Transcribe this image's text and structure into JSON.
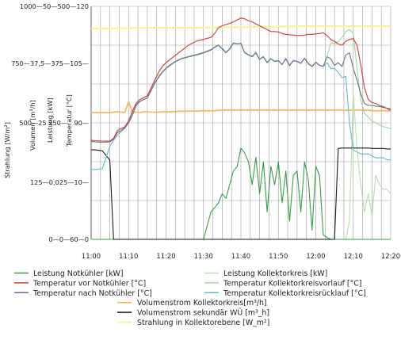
{
  "chart_data": {
    "type": "line",
    "x": [
      "11:00",
      "11:01",
      "11:03",
      "11:05",
      "11:06",
      "11:07",
      "11:08",
      "11:09",
      "11:10",
      "11:11",
      "11:12",
      "11:13",
      "11:14",
      "11:15",
      "11:16",
      "11:17",
      "11:18",
      "11:19",
      "11:20",
      "11:22",
      "11:24",
      "11:26",
      "11:28",
      "11:30",
      "11:32",
      "11:33",
      "11:34",
      "11:35",
      "11:36",
      "11:37",
      "11:38",
      "11:39",
      "11:40",
      "11:41",
      "11:42",
      "11:43",
      "11:44",
      "11:45",
      "11:46",
      "11:47",
      "11:48",
      "11:49",
      "11:50",
      "11:51",
      "11:52",
      "11:53",
      "11:54",
      "11:55",
      "11:56",
      "11:57",
      "11:58",
      "11:59",
      "12:00",
      "12:01",
      "12:02",
      "12:03",
      "12:04",
      "12:05",
      "12:06",
      "12:07",
      "12:08",
      "12:09",
      "12:10",
      "12:11",
      "12:12",
      "12:13",
      "12:14",
      "12:15",
      "12:16",
      "12:17",
      "12:18",
      "12:19",
      "12:20"
    ],
    "xticks": [
      "11:00",
      "11:10",
      "11:20",
      "11:30",
      "11:40",
      "11:50",
      "12:00",
      "12:10",
      "12:20"
    ],
    "axes": {
      "strahlung": {
        "label": "Strahlung [W/m²]",
        "ticks": [
          "0",
          "125",
          "500",
          "750",
          "1000"
        ]
      },
      "volumen": {
        "label": "Volumen [m³/h]",
        "ticks": [
          "0",
          "0,025",
          "25",
          "37,5",
          "50"
        ]
      },
      "leistung": {
        "label": "Leistung [kW]",
        "ticks": [
          "0",
          "250",
          "375",
          "500"
        ]
      },
      "temperatur": {
        "label": "Temperatur [°C]",
        "ticks": [
          "60",
          "10",
          "90",
          "105",
          "120"
        ]
      }
    },
    "ytick_labels": [
      "0—0—60—0",
      "125—0,025—10—",
      "500—25 250—",
      "90—",
      "750—37,5—375—105—",
      "1000—50—500—120"
    ],
    "series": [
      {
        "name": "Leistung Notkühler [kW]",
        "color": "#3a9a4a",
        "values": [
          0,
          0,
          0,
          0,
          0,
          0,
          0,
          0,
          0,
          0,
          0,
          0,
          0,
          0,
          0,
          0,
          0,
          0,
          0,
          0,
          0,
          0,
          0,
          0,
          0.3,
          0.35,
          0.4,
          0.5,
          0.45,
          0.6,
          0.75,
          0.8,
          1.0,
          0.95,
          0.85,
          0.6,
          0.9,
          0.5,
          0.85,
          0.3,
          0.8,
          0.6,
          0.85,
          0.4,
          0.75,
          0.2,
          0.7,
          0.75,
          0.3,
          0.85,
          0.65,
          0.1,
          0.8,
          0.7,
          0.05,
          0.02,
          0.0,
          0.0,
          0.0,
          0.0,
          0.0,
          0.0,
          0.0,
          0.0,
          0.0,
          0.0,
          0.0,
          0.0,
          0.0,
          0.0,
          0.0,
          0.0,
          0.0
        ]
      },
      {
        "name": "Leistung Kollektorkreis [kW]",
        "color": "#b9dfae",
        "values": [
          0,
          0,
          0,
          0,
          0,
          0,
          0,
          0,
          0,
          0,
          0,
          0,
          0,
          0,
          0,
          0,
          0,
          0,
          0,
          0,
          0,
          0,
          0,
          0,
          0,
          0,
          0,
          0,
          0,
          0,
          0,
          0,
          0,
          0,
          0,
          0,
          0,
          0,
          0,
          0,
          0,
          0,
          0,
          0,
          0,
          0,
          0,
          0,
          0,
          0,
          0,
          0,
          0,
          0,
          0,
          0,
          0,
          0,
          0,
          0,
          0,
          0.2,
          1.6,
          1.0,
          0.6,
          0.3,
          0.5,
          0.25,
          0.7,
          0.6,
          0.55,
          0.55,
          0.5
        ]
      },
      {
        "name": "Temperatur vor Notkühler [°C]",
        "color": "#c9403a",
        "values": [
          85.5,
          85.4,
          85.3,
          85.3,
          86,
          88,
          88.5,
          89,
          90.5,
          93,
          95,
          96,
          96.5,
          97,
          99,
          101,
          103,
          104.5,
          105.5,
          107,
          108.5,
          110,
          111,
          111.5,
          112,
          113,
          114.5,
          115,
          115.3,
          115.6,
          116,
          116.5,
          117,
          116.8,
          116.3,
          116,
          115.5,
          115,
          114.5,
          114,
          113.5,
          113.5,
          113.4,
          113,
          112.8,
          112.7,
          112.6,
          112.5,
          112.5,
          112.6,
          112.8,
          112.8,
          112.9,
          113,
          113.2,
          112.5,
          111.5,
          111,
          110.3,
          110,
          111,
          111.5,
          111.7,
          110,
          105,
          99,
          96,
          95.2,
          95,
          94.5,
          94.2,
          93.7,
          93.2
        ]
      },
      {
        "name": "Temperatur nach Notkühler [°C]",
        "color": "#736d86",
        "values": [
          85.2,
          85.1,
          85,
          85.1,
          85.8,
          87.5,
          88,
          88.8,
          90,
          92,
          94.5,
          95.5,
          96,
          96.4,
          98.3,
          100.2,
          101.8,
          103,
          104,
          105.5,
          106.5,
          107,
          107.5,
          108,
          108.8,
          109.5,
          110,
          109,
          108,
          109,
          110.5,
          110.3,
          110.5,
          108,
          107.5,
          107,
          108,
          106.3,
          107,
          105.5,
          106.5,
          105.8,
          106,
          105,
          106.5,
          104.8,
          106,
          105.8,
          105.3,
          106.6,
          105.2,
          104.5,
          105.6,
          104.8,
          104.5,
          107,
          106.5,
          104.8,
          105.5,
          104.5,
          107.5,
          108,
          104,
          101,
          97.5,
          95,
          94.5,
          94.5,
          94.3,
          94.2,
          94,
          93.8,
          93.6
        ]
      },
      {
        "name": "Temperatur Kollektorkreisvorlauf [°C]",
        "color": "#a6d3a1",
        "values": [
          85.3,
          85.1,
          85,
          85.1,
          85.8,
          87.6,
          88,
          88.9,
          90.2,
          92.3,
          94.8,
          95.6,
          96.1,
          96.5,
          98.5,
          100.4,
          102,
          103.2,
          104.2,
          105.6,
          106.6,
          107.1,
          107.6,
          108.2,
          108.9,
          109.6,
          110.1,
          109.2,
          108.2,
          109.2,
          110.6,
          110.4,
          110.5,
          108.2,
          107.6,
          107.2,
          108.1,
          106.4,
          107.1,
          105.6,
          106.6,
          105.9,
          106.1,
          105.1,
          106.6,
          104.9,
          106.1,
          105.9,
          105.4,
          106.7,
          105.3,
          104.6,
          105.7,
          104.9,
          104.6,
          107.1,
          110.5,
          110.5,
          111,
          112,
          113.5,
          114,
          113,
          104,
          96,
          92.5,
          91.5,
          90.5,
          90,
          89.5,
          89,
          88.8,
          88.5
        ]
      },
      {
        "name": "Temperatur Kollektorkreisrücklauf [°C]",
        "color": "#65b9cf",
        "values": [
          78,
          78,
          78.2,
          84,
          85.5,
          86.8,
          87.8,
          88.6,
          90,
          92,
          94.4,
          95.5,
          96,
          96.4,
          98.2,
          100.2,
          101.7,
          103,
          104,
          105.4,
          106.5,
          107,
          107.4,
          108,
          108.7,
          109.4,
          110,
          109.2,
          108.1,
          109,
          110.5,
          110.3,
          110.4,
          108.1,
          107.5,
          107,
          108.2,
          106.3,
          107,
          105.5,
          106.6,
          105.8,
          106,
          105,
          106.6,
          104.7,
          106,
          105.8,
          105.3,
          106.7,
          105.2,
          104.5,
          105.6,
          104.8,
          104.5,
          105.5,
          104,
          104,
          103,
          101.6,
          102,
          90,
          83,
          82.5,
          82,
          82,
          82,
          81.5,
          81,
          81,
          81,
          80.5,
          80.5
        ]
      },
      {
        "name": "Volumenstrom Kollektorkreis[m³/h]",
        "color": "#f4b45b",
        "values": [
          27.3,
          27.2,
          27.2,
          27.2,
          27.3,
          27.4,
          27.3,
          27.2,
          29.5,
          27.4,
          27.3,
          27.2,
          27.4,
          27.4,
          27.3,
          27.3,
          27.3,
          27.4,
          27.4,
          27.4,
          27.5,
          27.5,
          27.5,
          27.6,
          27.6,
          27.6,
          27.7,
          27.7,
          27.7,
          27.7,
          27.7,
          27.7,
          27.7,
          27.7,
          27.7,
          27.7,
          27.7,
          27.7,
          27.7,
          27.7,
          27.7,
          27.7,
          27.7,
          27.7,
          27.7,
          27.7,
          27.7,
          27.7,
          27.7,
          27.7,
          27.7,
          27.7,
          27.7,
          27.7,
          27.7,
          27.7,
          27.7,
          27.7,
          27.7,
          27.7,
          27.7,
          27.7,
          27.7,
          27.7,
          27.7,
          27.7,
          27.7,
          27.6,
          27.6,
          27.6,
          27.6,
          27.6,
          27.6
        ]
      },
      {
        "name": "Volumenstrom sekundär WÜ [m³_h]",
        "color": "#1a1a1a",
        "values": [
          19.2,
          19.2,
          19,
          17,
          0,
          0,
          0,
          0,
          0,
          0,
          0,
          0,
          0,
          0,
          0,
          0,
          0,
          0,
          0,
          0,
          0,
          0,
          0,
          0,
          0,
          0,
          0,
          0,
          0,
          0,
          0,
          0,
          0,
          0,
          0,
          0,
          0,
          0,
          0,
          0,
          0,
          0,
          0,
          0,
          0,
          0,
          0,
          0,
          0,
          0,
          0,
          0,
          0,
          0,
          0,
          0,
          0,
          0,
          19.5,
          19.6,
          19.6,
          19.6,
          19.6,
          19.6,
          19.6,
          19.6,
          19.6,
          19.5,
          19.5,
          19.5,
          19.5,
          19.4,
          19.4
        ]
      },
      {
        "name": "Strahlung in Kollektorebene [W_m²]",
        "color": "#f6f291",
        "values": [
          904,
          904,
          905,
          905,
          905,
          906,
          906,
          906,
          906,
          907,
          907,
          907,
          907,
          907,
          908,
          908,
          908,
          908,
          908,
          908,
          908,
          908,
          908,
          909,
          909,
          909,
          909,
          910,
          910,
          910,
          910,
          910,
          911,
          911,
          911,
          912,
          912,
          912,
          913,
          913,
          913,
          913,
          914,
          914,
          914,
          914,
          914,
          915,
          915,
          915,
          915,
          915,
          915,
          915,
          915,
          915,
          915,
          915,
          915,
          915,
          915,
          915,
          915,
          915,
          915,
          915,
          915,
          915,
          915,
          915,
          915,
          915,
          915
        ]
      }
    ],
    "legend": [
      [
        "Leistung Notkühler [kW]",
        "Leistung Kollektorkreis [kW]"
      ],
      [
        "Temperatur vor Notkühler [°C]",
        "Temperatur Kollektorkreisvorlauf [°C]"
      ],
      [
        "Temperatur nach Notkühler [°C]",
        "Temperatur Kollektorkreisrücklauf [°C]"
      ],
      [
        "Volumenstrom Kollektorkreis[m³/h]"
      ],
      [
        "Volumenstrom sekundär WÜ [m³_h]"
      ],
      [
        "Strahlung in Kollektorebene [W_m²]"
      ]
    ],
    "legend_placement": "bottom",
    "grid": true
  }
}
